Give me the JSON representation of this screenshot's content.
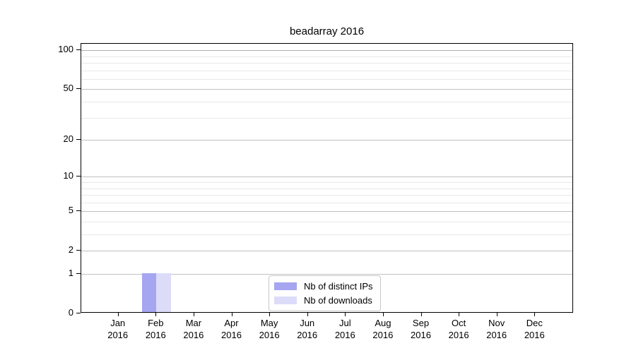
{
  "title": "beadarray 2016",
  "chart_data": {
    "type": "bar",
    "title": "beadarray 2016",
    "categories": [
      "Jan 2016",
      "Feb 2016",
      "Mar 2016",
      "Apr 2016",
      "May 2016",
      "Jun 2016",
      "Jul 2016",
      "Aug 2016",
      "Sep 2016",
      "Oct 2016",
      "Nov 2016",
      "Dec 2016"
    ],
    "series": [
      {
        "name": "Nb of distinct IPs",
        "color": "#a5a5f1",
        "values": [
          0,
          1,
          0,
          0,
          0,
          0,
          0,
          0,
          0,
          0,
          0,
          0
        ]
      },
      {
        "name": "Nb of downloads",
        "color": "#dcdcf9",
        "values": [
          0,
          1,
          0,
          0,
          0,
          0,
          0,
          0,
          0,
          0,
          0,
          0
        ]
      }
    ],
    "xlabel": "",
    "ylabel": "",
    "scale": "log1p",
    "ylim": [
      0,
      112
    ],
    "yticks": [
      0,
      1,
      2,
      5,
      10,
      20,
      50,
      100
    ],
    "minor_gridlines": [
      3,
      4,
      6,
      7,
      8,
      9,
      30,
      40,
      60,
      70,
      80,
      90
    ],
    "grid": "horizontal",
    "legend_position": "bottom-center",
    "colors": {
      "distinct_ips": "#a5a5f1",
      "downloads": "#dcdcf9",
      "major_grid": "#c0c0c0",
      "minor_grid": "#e8e8e8",
      "spine": "#000000"
    }
  }
}
